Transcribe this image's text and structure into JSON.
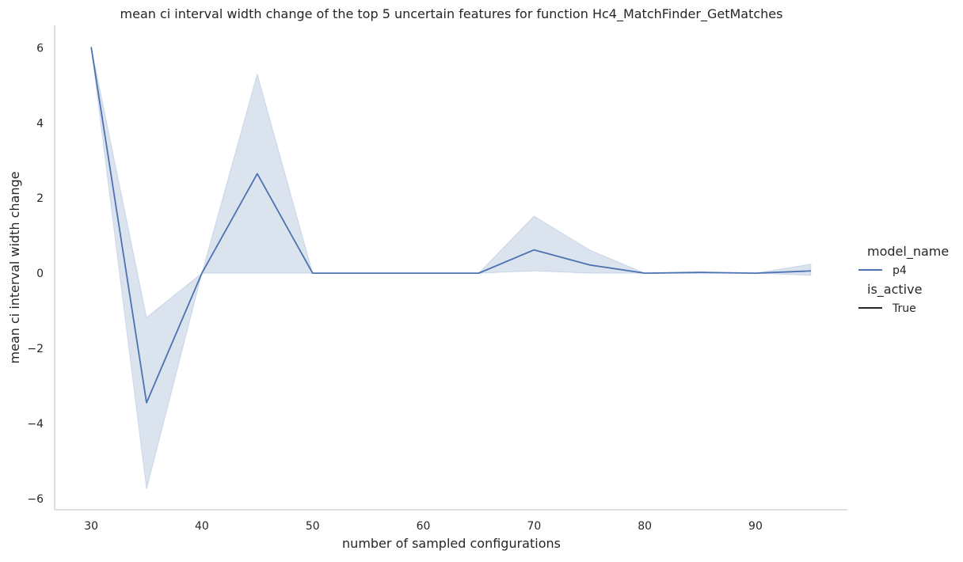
{
  "chart_data": {
    "type": "line",
    "title": "mean ci interval width change of the top 5 uncertain features for function Hc4_MatchFinder_GetMatches",
    "xlabel": "number of sampled configurations",
    "ylabel": "mean ci interval width change",
    "xlim": [
      26.7,
      98.3
    ],
    "ylim": [
      -6.3,
      6.6
    ],
    "xticks": [
      30,
      40,
      50,
      60,
      70,
      80,
      90
    ],
    "yticks": [
      -6,
      -4,
      -2,
      0,
      2,
      4,
      6
    ],
    "ytick_labels": [
      "−6",
      "−4",
      "−2",
      "0",
      "2",
      "4",
      "6"
    ],
    "grid": false,
    "legend_position": "right",
    "series": [
      {
        "name": "p4",
        "color": "#4c72b0",
        "x": [
          30,
          35,
          40,
          45,
          50,
          55,
          60,
          65,
          70,
          75,
          80,
          85,
          90,
          95
        ],
        "y": [
          6.02,
          -3.45,
          0.0,
          2.65,
          0.0,
          0.0,
          0.0,
          0.0,
          0.62,
          0.22,
          0.0,
          0.02,
          0.0,
          0.06
        ],
        "ci_lower": [
          6.02,
          -5.75,
          0.0,
          0.0,
          0.0,
          0.0,
          0.0,
          0.0,
          0.06,
          0.0,
          0.0,
          0.0,
          0.0,
          -0.06
        ],
        "ci_upper": [
          6.02,
          -1.18,
          0.0,
          5.3,
          0.0,
          0.0,
          0.0,
          0.0,
          1.52,
          0.62,
          0.0,
          0.04,
          0.0,
          0.24
        ]
      }
    ],
    "legend": {
      "hue_title": "model_name",
      "hue_entries": [
        "p4"
      ],
      "style_title": "is_active",
      "style_entries": [
        "True"
      ]
    }
  }
}
